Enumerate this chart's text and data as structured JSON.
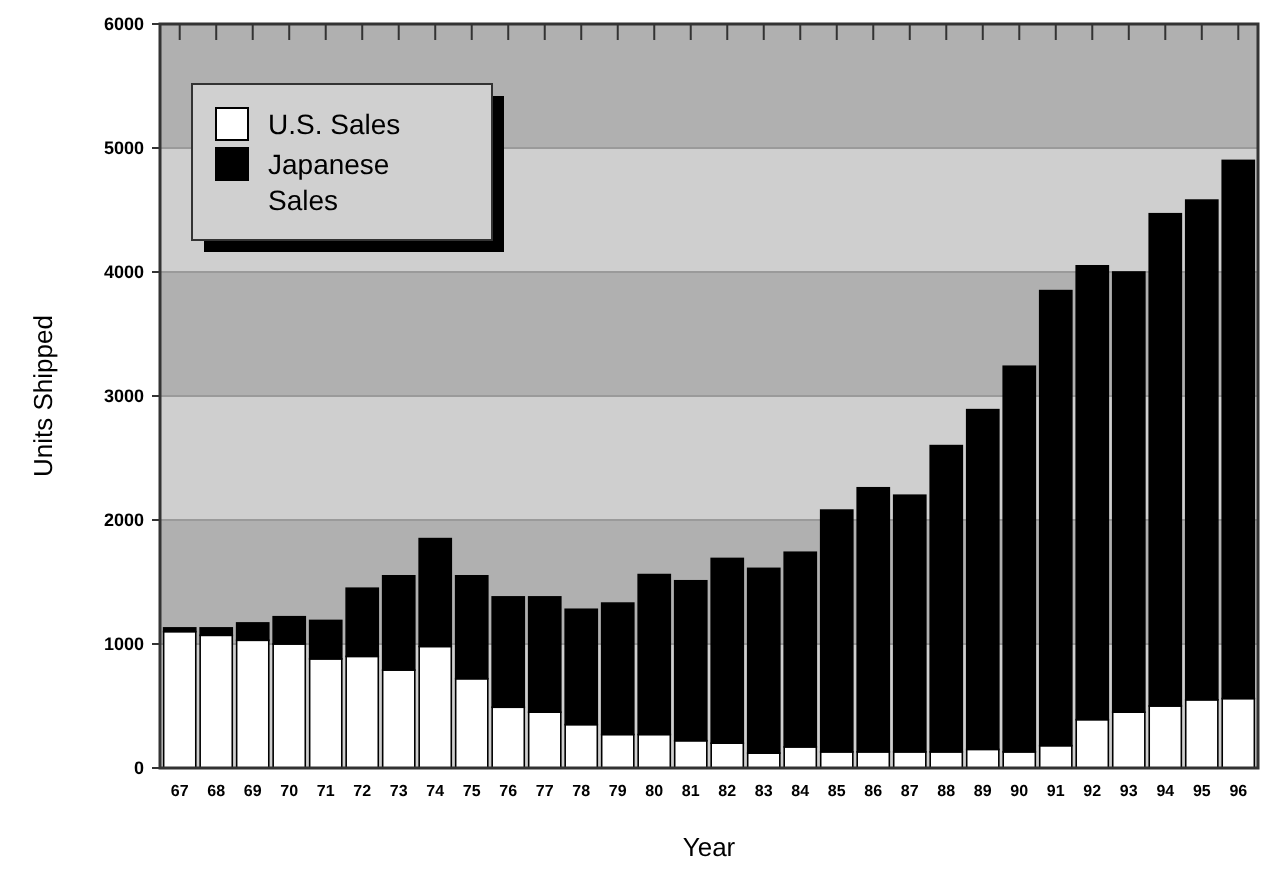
{
  "chart_data": {
    "type": "bar",
    "stacked": true,
    "xlabel": "Year",
    "ylabel": "Units Shipped",
    "categories": [
      "67",
      "68",
      "69",
      "70",
      "71",
      "72",
      "73",
      "74",
      "75",
      "76",
      "77",
      "78",
      "79",
      "80",
      "81",
      "82",
      "83",
      "84",
      "85",
      "86",
      "87",
      "88",
      "89",
      "90",
      "91",
      "92",
      "93",
      "94",
      "95",
      "96"
    ],
    "series": [
      {
        "name": "U.S. Sales",
        "color": "#ffffff",
        "values": [
          1100,
          1070,
          1030,
          1000,
          880,
          900,
          790,
          980,
          720,
          490,
          450,
          350,
          270,
          270,
          220,
          200,
          120,
          170,
          130,
          130,
          130,
          130,
          150,
          130,
          180,
          390,
          450,
          500,
          550,
          560
        ]
      },
      {
        "name": "Japanese\nSales",
        "color": "#000000",
        "values": [
          30,
          60,
          140,
          220,
          310,
          550,
          760,
          870,
          830,
          890,
          930,
          930,
          1060,
          1290,
          1290,
          1490,
          1490,
          1570,
          1950,
          2130,
          2070,
          2470,
          2740,
          3110,
          3670,
          3660,
          3550,
          3970,
          4030,
          4340
        ]
      }
    ],
    "ylim": [
      0,
      6000
    ],
    "yticks": [
      0,
      1000,
      2000,
      3000,
      4000,
      5000,
      6000
    ],
    "grid": "y",
    "legend": "top left"
  }
}
